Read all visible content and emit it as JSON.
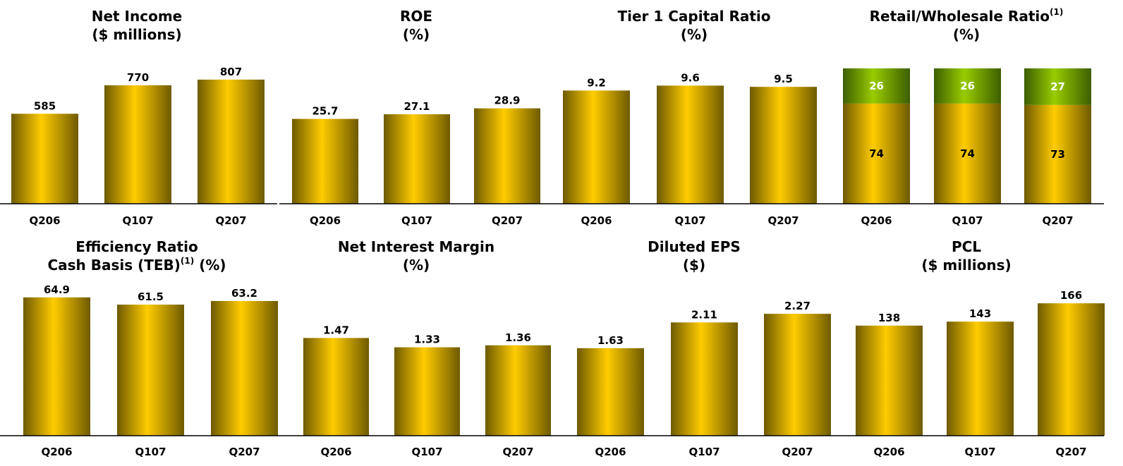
{
  "colors": {
    "bar_light": "#ffcc00",
    "bar_dark": "#6e5a00",
    "segment_light": "#99cc00",
    "segment_dark": "#3d5e00",
    "segment_text": "#ffffff",
    "axis": "#000000"
  },
  "chart_data": [
    {
      "type": "bar",
      "title_lines": [
        "Net Income",
        "($ millions)"
      ],
      "title_sup": "",
      "categories": [
        "Q206",
        "Q107",
        "Q207"
      ],
      "values": [
        585,
        770,
        807
      ],
      "value_labels": [
        "585",
        "770",
        "807"
      ],
      "xlabel": "",
      "ylabel": "",
      "ylim": [
        0,
        880
      ],
      "grid": false
    },
    {
      "type": "bar",
      "title_lines": [
        "ROE",
        "(%)"
      ],
      "title_sup": "",
      "categories": [
        "Q206",
        "Q107",
        "Q207"
      ],
      "values": [
        25.7,
        27.1,
        28.9
      ],
      "value_labels": [
        "25.7",
        "27.1",
        "28.9"
      ],
      "xlabel": "",
      "ylabel": "",
      "ylim": [
        0,
        41
      ],
      "grid": false
    },
    {
      "type": "bar",
      "title_lines": [
        "Tier 1 Capital Ratio",
        "(%)"
      ],
      "title_sup": "",
      "categories": [
        "Q206",
        "Q107",
        "Q207"
      ],
      "values": [
        9.2,
        9.6,
        9.5
      ],
      "value_labels": [
        "9.2",
        "9.6",
        "9.5"
      ],
      "xlabel": "",
      "ylabel": "",
      "ylim": [
        0,
        11
      ],
      "grid": false
    },
    {
      "type": "bar",
      "stacked": true,
      "title_lines": [
        "Retail/Wholesale Ratio",
        "(%)"
      ],
      "title_sup": "(1)",
      "categories": [
        "Q206",
        "Q107",
        "Q207"
      ],
      "series": [
        {
          "values": [
            74,
            74,
            73
          ],
          "labels": [
            "74",
            "74",
            "73"
          ]
        },
        {
          "values": [
            26,
            26,
            27
          ],
          "labels": [
            "26",
            "26",
            "27"
          ]
        }
      ],
      "xlabel": "",
      "ylabel": "",
      "ylim": [
        0,
        100
      ],
      "grid": false
    },
    {
      "type": "bar",
      "title_lines": [
        "Efficiency Ratio",
        "Cash Basis (TEB)"
      ],
      "title_sup": "(1)",
      "title_tail": " (%)",
      "categories": [
        "Q206",
        "Q107",
        "Q207"
      ],
      "values": [
        64.9,
        61.5,
        63.2
      ],
      "value_labels": [
        "64.9",
        "61.5",
        "63.2"
      ],
      "xlabel": "",
      "ylabel": "",
      "ylim": [
        0,
        65.5
      ],
      "grid": false
    },
    {
      "type": "bar",
      "title_lines": [
        "Net Interest Margin",
        "(%)"
      ],
      "title_sup": "",
      "categories": [
        "Q206",
        "Q107",
        "Q207"
      ],
      "values": [
        1.47,
        1.33,
        1.36
      ],
      "value_labels": [
        "1.47",
        "1.33",
        "1.36"
      ],
      "xlabel": "",
      "ylabel": "",
      "ylim": [
        0,
        2.1
      ],
      "grid": false
    },
    {
      "type": "bar",
      "title_lines": [
        "Diluted EPS",
        "($)"
      ],
      "title_sup": "",
      "categories": [
        "Q206",
        "Q107",
        "Q207"
      ],
      "values": [
        1.63,
        2.11,
        2.27
      ],
      "value_labels": [
        "1.63",
        "2.11",
        "2.27"
      ],
      "xlabel": "",
      "ylabel": "",
      "ylim": [
        0,
        2.6
      ],
      "grid": false
    },
    {
      "type": "bar",
      "title_lines": [
        "PCL",
        "($ millions)"
      ],
      "title_sup": "",
      "categories": [
        "Q206",
        "Q107",
        "Q207"
      ],
      "values": [
        138,
        143,
        166
      ],
      "value_labels": [
        "138",
        "143",
        "166"
      ],
      "xlabel": "",
      "ylabel": "",
      "ylim": [
        0,
        175
      ],
      "grid": false
    }
  ]
}
